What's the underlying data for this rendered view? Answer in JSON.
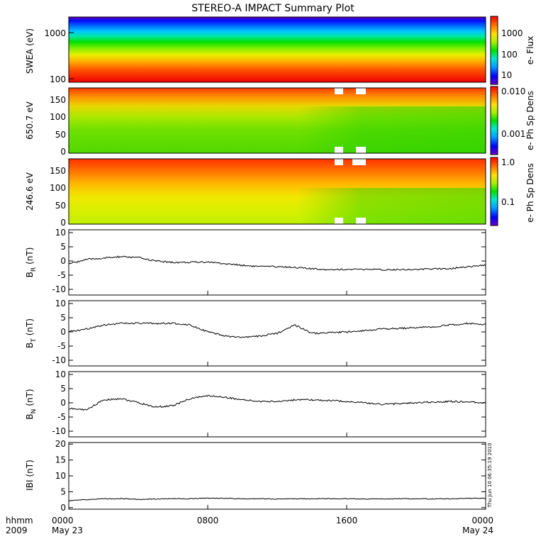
{
  "title": "STEREO-A IMPACT Summary Plot",
  "x_axis": {
    "row1_labels": [
      "hhmm",
      "0000",
      "0800",
      "1600",
      "0000"
    ],
    "row2_labels": [
      "2009",
      "May 23",
      "May 24"
    ]
  },
  "timestamp": "Thu Jun 10 06:35:19 2010",
  "chart_data": [
    {
      "type": "heatmap",
      "ylabel": "SWEA (eV)",
      "yscale": "log",
      "ylim": [
        95,
        2000
      ],
      "yticks": [
        "100",
        "1000"
      ],
      "colorbar": {
        "label": "e- Flux",
        "scale": "log",
        "range": [
          3,
          7000
        ],
        "ticks": [
          "10",
          "100",
          "1000"
        ]
      },
      "description_bands": [
        "red low energy",
        "green 300-600 eV",
        "blue above 1200 eV"
      ]
    },
    {
      "type": "heatmap",
      "ylabel": "650.7 eV",
      "ylim": [
        -10,
        180
      ],
      "yticks": [
        "0",
        "50",
        "100",
        "150"
      ],
      "colorbar": {
        "label": "e- Ph Sp Dens",
        "scale": "log",
        "range": [
          0.0002,
          0.012
        ],
        "ticks": [
          "0.001",
          "0.010"
        ]
      }
    },
    {
      "type": "heatmap",
      "ylabel": "246.6 eV",
      "ylim": [
        -10,
        180
      ],
      "yticks": [
        "0",
        "50",
        "100",
        "150"
      ],
      "colorbar": {
        "label": "e- Ph Sp Dens",
        "scale": "log",
        "range": [
          0.02,
          1.0
        ],
        "ticks": [
          "0.1",
          "1.0"
        ]
      }
    },
    {
      "type": "line",
      "ylabel": "B_R (nT)",
      "ylabel_main": "B",
      "ylabel_sub": "R",
      "ylabel_unit": "(nT)",
      "ylim": [
        -12,
        11
      ],
      "yticks": [
        "-10",
        "-5",
        "0",
        "5",
        "10"
      ],
      "x_hours": [
        0,
        1,
        2,
        3,
        4,
        5,
        6,
        7,
        8,
        9,
        10,
        11,
        12,
        13,
        14,
        15,
        16,
        17,
        18,
        19,
        20,
        21,
        22,
        23,
        24
      ],
      "values": [
        -1,
        0.5,
        1,
        1.5,
        1.2,
        0,
        -0.5,
        -0.5,
        -0.3,
        -1,
        -1.5,
        -2,
        -2,
        -2.2,
        -2.8,
        -3,
        -3,
        -3,
        -3.1,
        -3,
        -3,
        -2.8,
        -2.6,
        -2,
        -1.5
      ]
    },
    {
      "type": "line",
      "ylabel": "B_T (nT)",
      "ylabel_main": "B",
      "ylabel_sub": "T",
      "ylabel_unit": "(nT)",
      "ylim": [
        -12,
        11
      ],
      "yticks": [
        "-10",
        "-5",
        "0",
        "5",
        "10"
      ],
      "x_hours": [
        0,
        1,
        2,
        3,
        4,
        5,
        6,
        7,
        8,
        9,
        10,
        11,
        12,
        13,
        14,
        15,
        16,
        17,
        18,
        19,
        20,
        21,
        22,
        23,
        24
      ],
      "values": [
        0,
        1,
        2.5,
        3,
        3,
        3,
        3,
        2.5,
        0,
        -1.5,
        -2,
        -1.5,
        -0.5,
        2.5,
        -0.5,
        -0.3,
        0,
        0.5,
        1,
        1.2,
        1.5,
        1.8,
        2.5,
        3,
        2.5
      ]
    },
    {
      "type": "line",
      "ylabel": "B_N (nT)",
      "ylabel_main": "B",
      "ylabel_sub": "N",
      "ylabel_unit": "(nT)",
      "ylim": [
        -12,
        11
      ],
      "yticks": [
        "-10",
        "-5",
        "0",
        "5",
        "10"
      ],
      "x_hours": [
        0,
        1,
        2,
        3,
        4,
        5,
        6,
        7,
        8,
        9,
        10,
        11,
        12,
        13,
        14,
        15,
        16,
        17,
        18,
        19,
        20,
        21,
        22,
        23,
        24
      ],
      "values": [
        -2,
        -2.5,
        1,
        1.5,
        0,
        -1.5,
        -1,
        1.5,
        2.5,
        2,
        1,
        0.5,
        0.5,
        1,
        1,
        0.8,
        0.5,
        0,
        -0.5,
        -0.3,
        0,
        0.2,
        0.5,
        0.3,
        0
      ]
    },
    {
      "type": "line",
      "ylabel": "|B| (nT)",
      "ylabel_main": "IBI",
      "ylabel_unit": "(nT)",
      "ylim": [
        -0.5,
        20.5
      ],
      "yticks": [
        "0",
        "5",
        "10",
        "15",
        "20"
      ],
      "x_hours": [
        0,
        1,
        2,
        3,
        4,
        5,
        6,
        7,
        8,
        9,
        10,
        11,
        12,
        13,
        14,
        15,
        16,
        17,
        18,
        19,
        20,
        21,
        22,
        23,
        24
      ],
      "values": [
        2.2,
        2.5,
        2.8,
        2.8,
        2.6,
        2.7,
        2.8,
        2.8,
        3,
        2.9,
        2.8,
        2.8,
        2.7,
        2.8,
        2.8,
        2.8,
        2.8,
        2.7,
        2.7,
        2.8,
        2.8,
        2.7,
        2.8,
        2.9,
        3
      ]
    }
  ]
}
